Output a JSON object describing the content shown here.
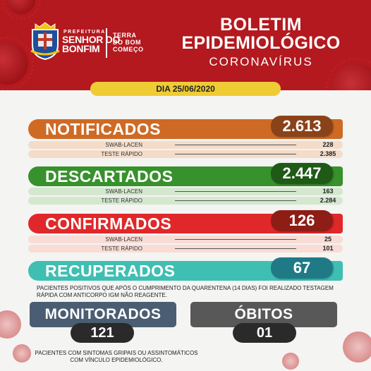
{
  "header": {
    "prefeitura_small": "PREFEITURA",
    "prefeitura_line1": "SENHOR DO",
    "prefeitura_line2": "BONFIM",
    "slogan_line1": "TERRA",
    "slogan_line2": "DO BOM",
    "slogan_line3": "COMEÇO",
    "title_line1": "BOLETIM",
    "title_line2": "EPIDEMIOLÓGICO",
    "subtitle": "CORONAVÍRUS"
  },
  "date": "DIA 25/06/2020",
  "categories": {
    "notificados": {
      "label": "NOTIFICADOS",
      "total": "2.613",
      "swab_label": "SWAB-LACEN",
      "swab": "228",
      "teste_label": "TESTE RÁPIDO",
      "teste": "2.385"
    },
    "descartados": {
      "label": "DESCARTADOS",
      "total": "2.447",
      "swab_label": "SWAB-LACEN",
      "swab": "163",
      "teste_label": "TESTE RÁPIDO",
      "teste": "2.284"
    },
    "confirmados": {
      "label": "CONFIRMADOS",
      "total": "126",
      "swab_label": "SWAB-LACEN",
      "swab": "25",
      "teste_label": "TESTE RÁPIDO",
      "teste": "101"
    },
    "recuperados": {
      "label": "RECUPERADOS",
      "total": "67"
    }
  },
  "recuperados_note": "PACIENTES POSITIVOS QUE APÓS O CUMPRIMENTO DA QUARENTENA (14 DIAS) FOI REALIZADO TESTAGEM RÁPIDA COM ANTICORPO IGM NÃO REAGENTE.",
  "monitorados": {
    "label": "MONITORADOS",
    "value": "121"
  },
  "obitos": {
    "label": "ÓBITOS",
    "value": "01"
  },
  "monitorados_note": "PACIENTES COM SINTOMAS GRIPAIS OU ASSINTOMÁTICOS COM VÍNCULO EPIDEMIOLÓGICO.",
  "colors": {
    "header_red": "#b3191f",
    "date_yellow": "#efcc34",
    "notificados": "#cf6a24",
    "notificados_pill": "#8a4319",
    "descartados": "#37912c",
    "descartados_pill": "#1f5a17",
    "confirmados": "#e0282a",
    "confirmados_pill": "#8e1d16",
    "recuperados": "#3fbfb2",
    "recuperados_pill": "#1f7a86",
    "monitorados": "#4a5d72",
    "obitos": "#585858"
  }
}
